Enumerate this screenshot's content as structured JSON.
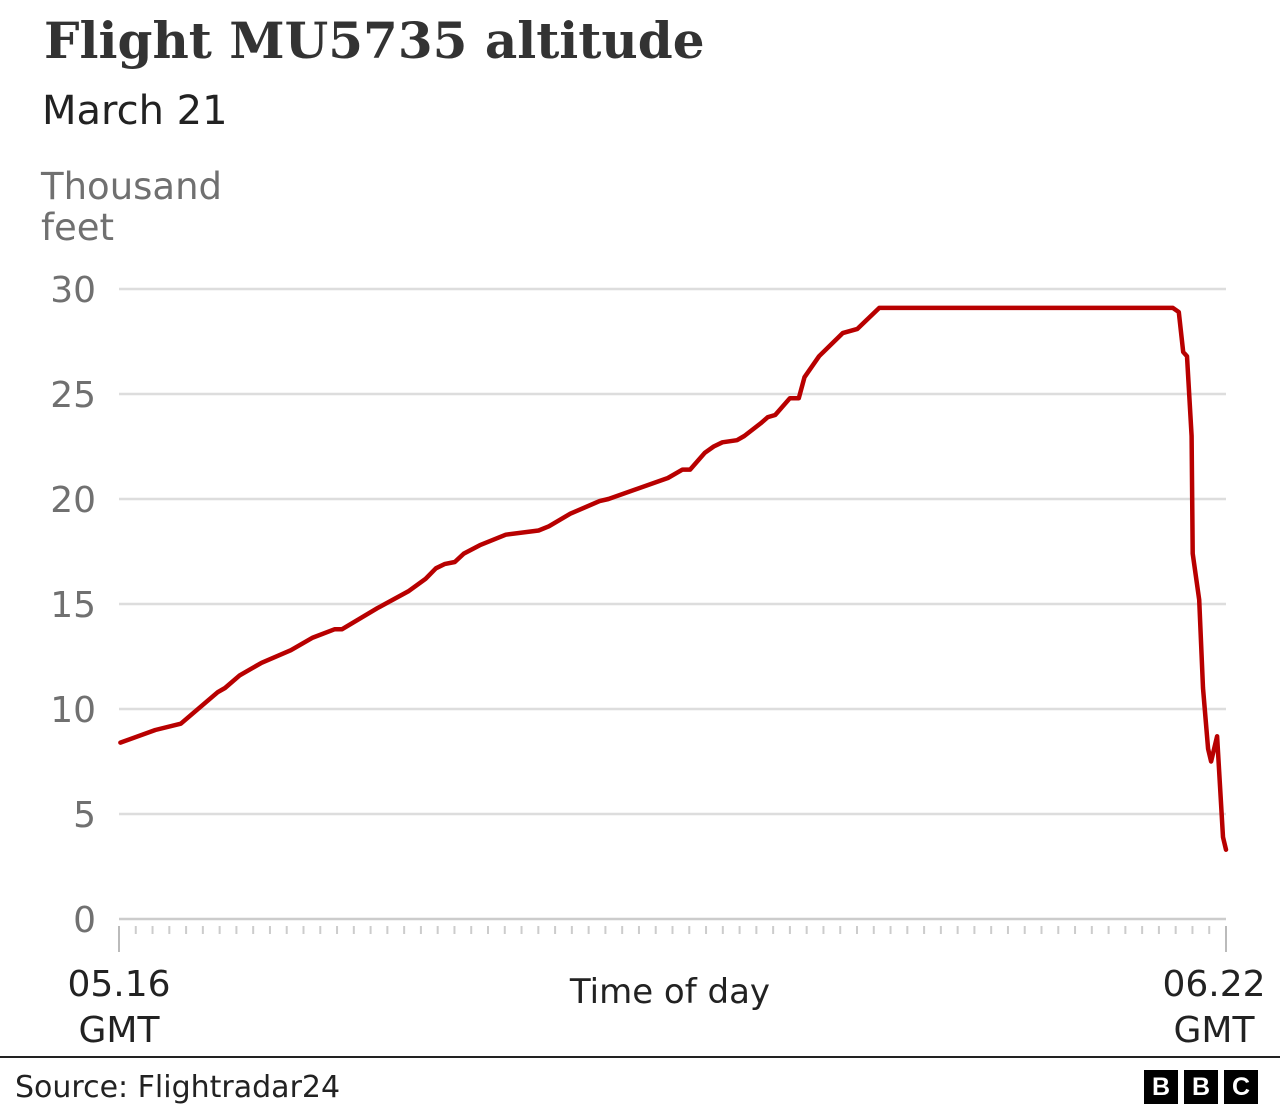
{
  "chart_data": {
    "type": "line",
    "title": "Flight MU5735 altitude",
    "subtitle": "March 21",
    "ylabel": "Thousand feet",
    "xlabel": "Time of day",
    "ylim": [
      0,
      30
    ],
    "yticks": [
      0,
      5,
      10,
      15,
      20,
      25,
      30
    ],
    "xlim_labels": {
      "start": "05.16 GMT",
      "end": "06.22 GMT"
    },
    "xlim_minutes_labeled": [
      "05:16",
      "06:22"
    ],
    "grid": true,
    "line_color": "#b80000",
    "series": [
      {
        "points": [
          [
            "05:16:17",
            8.4
          ],
          [
            "05:18:26",
            9.0
          ],
          [
            "05:20:00",
            9.3
          ],
          [
            "05:22:16",
            10.8
          ],
          [
            "05:22:43",
            11.0
          ],
          [
            "05:23:37",
            11.6
          ],
          [
            "05:24:58",
            12.2
          ],
          [
            "05:26:46",
            12.8
          ],
          [
            "05:28:07",
            13.4
          ],
          [
            "05:29:28",
            13.8
          ],
          [
            "05:29:55",
            13.8
          ],
          [
            "05:32:05",
            14.8
          ],
          [
            "05:33:59",
            15.6
          ],
          [
            "05:35:03",
            16.2
          ],
          [
            "05:35:41",
            16.7
          ],
          [
            "05:36:13",
            16.9
          ],
          [
            "05:36:51",
            17.0
          ],
          [
            "05:37:24",
            17.4
          ],
          [
            "05:38:23",
            17.8
          ],
          [
            "05:39:59",
            18.3
          ],
          [
            "05:42:00",
            18.5
          ],
          [
            "05:42:38",
            18.7
          ],
          [
            "05:43:57",
            19.3
          ],
          [
            "05:45:45",
            19.9
          ],
          [
            "05:46:18",
            20.0
          ],
          [
            "05:49:57",
            21.0
          ],
          [
            "05:50:51",
            21.4
          ],
          [
            "05:51:19",
            21.4
          ],
          [
            "05:52:13",
            22.2
          ],
          [
            "05:52:46",
            22.5
          ],
          [
            "05:53:18",
            22.7
          ],
          [
            "05:54:12",
            22.8
          ],
          [
            "05:54:39",
            23.0
          ],
          [
            "05:55:39",
            23.6
          ],
          [
            "05:56:06",
            23.9
          ],
          [
            "05:56:33",
            24.0
          ],
          [
            "05:57:27",
            24.8
          ],
          [
            "05:58:00",
            24.8
          ],
          [
            "05:58:21",
            25.8
          ],
          [
            "05:59:15",
            26.8
          ],
          [
            "06:00:42",
            27.9
          ],
          [
            "06:01:36",
            28.1
          ],
          [
            "06:02:57",
            29.1
          ],
          [
            "06:21:00",
            29.1
          ],
          [
            "06:21:22",
            28.9
          ],
          [
            "06:21:38",
            27.0
          ],
          [
            "06:21:52",
            26.8
          ],
          [
            "06:22:09",
            23.0
          ],
          [
            "06:22:13",
            17.4
          ],
          [
            "06:22:37",
            15.2
          ],
          [
            "06:22:51",
            11.0
          ],
          [
            "06:23:10",
            8.1
          ],
          [
            "06:23:21",
            7.5
          ],
          [
            "06:23:43",
            8.7
          ],
          [
            "06:24:05",
            3.9
          ],
          [
            "06:24:16",
            3.3
          ]
        ]
      }
    ]
  },
  "footer": {
    "source": "Source: Flightradar24",
    "logo": [
      "B",
      "B",
      "C"
    ]
  }
}
